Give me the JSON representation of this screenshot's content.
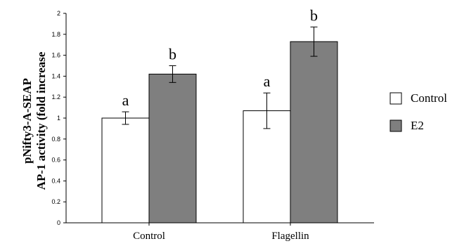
{
  "chart_data": {
    "type": "bar",
    "ylabel_lines": [
      "pNifty3-A-SEAP",
      "AP-1 activity (fold increase"
    ],
    "categories": [
      "Control",
      "Flagellin"
    ],
    "series": [
      {
        "name": "Control",
        "color": "#ffffff",
        "values": [
          1.0,
          1.07
        ],
        "errors": [
          0.06,
          0.17
        ],
        "sig": [
          "a",
          "a"
        ]
      },
      {
        "name": "E2",
        "color": "#7f7f7f",
        "values": [
          1.42,
          1.73
        ],
        "errors": [
          0.08,
          0.14
        ],
        "sig": [
          "b",
          "b"
        ]
      }
    ],
    "ylim": [
      0,
      2
    ],
    "yticks": [
      "0",
      "0.2",
      "0.4",
      "0.6",
      "0.8",
      "1",
      "1.2",
      "1.4",
      "1.6",
      "1.8",
      "2"
    ],
    "grid": false,
    "legend_position": "right"
  }
}
